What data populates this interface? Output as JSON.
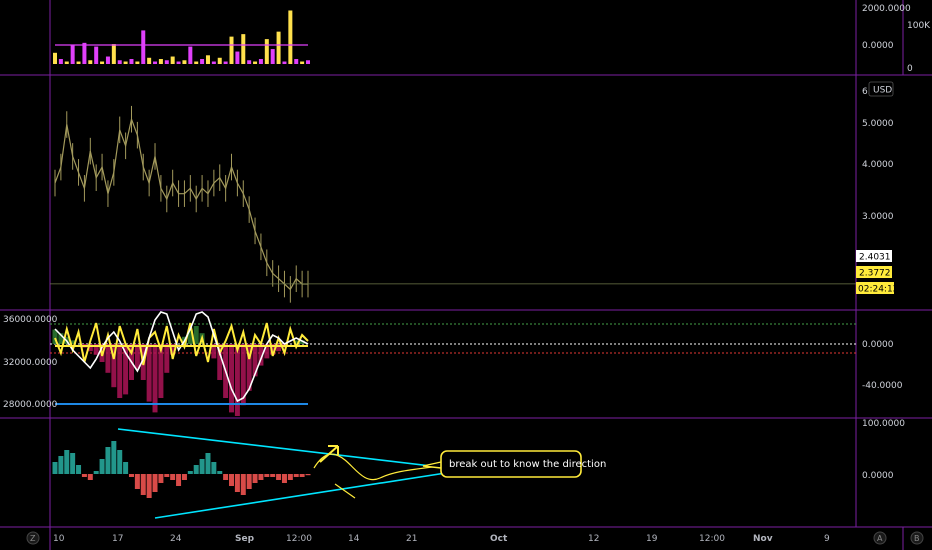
{
  "chart_data": [
    {
      "type": "bar",
      "pane": "volume",
      "y_ticks": [
        "2000.0000",
        "0.0000"
      ],
      "right_scale_labels": [
        "100K",
        "0"
      ],
      "series": [
        {
          "values": [
            0.9,
            0.4,
            0.2,
            1.5,
            0.2,
            1.7,
            0.3,
            1.4,
            0.2,
            0.6,
            1.6,
            0.3,
            0.2,
            0.4,
            0.2,
            2.7,
            0.5,
            0.2,
            0.4,
            0.3,
            0.6,
            0.2,
            0.3,
            1.4,
            0.2,
            0.4,
            0.7,
            0.2,
            0.5,
            0.2,
            2.2,
            1.0,
            2.4,
            0.3,
            0.2,
            0.4,
            2.0,
            1.2,
            2.6,
            0.2,
            4.3,
            0.4,
            0.2,
            0.3
          ]
        }
      ],
      "colors": [
        "#ffe14d",
        "#e040fb"
      ]
    },
    {
      "type": "line",
      "pane": "price",
      "y_ticks": [
        "6.",
        "5.0000",
        "4.0000",
        "3.0000"
      ],
      "currency": "USD",
      "price_labels": [
        "2.4031",
        "2.3772",
        "02:24:12"
      ],
      "ylim": [
        2.1,
        6.2
      ],
      "series": [
        {
          "values": [
            4.3,
            4.6,
            5.4,
            4.8,
            4.5,
            4.2,
            4.9,
            4.4,
            4.6,
            4.1,
            4.5,
            5.3,
            5.0,
            5.5,
            5.2,
            4.6,
            4.3,
            4.8,
            4.2,
            4.0,
            4.3,
            4.1,
            4.1,
            4.2,
            4.0,
            4.2,
            4.1,
            4.3,
            4.4,
            4.2,
            4.6,
            4.3,
            4.1,
            3.8,
            3.4,
            3.1,
            2.8,
            2.6,
            2.5,
            2.4,
            2.3,
            2.5,
            2.4,
            2.4
          ]
        }
      ],
      "colors": [
        "#a39a5c"
      ]
    },
    {
      "type": "line",
      "pane": "oscillator",
      "y_ticks_left": [
        "36000.0000",
        "32000.0000",
        "28000.0000"
      ],
      "y_ticks_right": [
        "0.0000",
        "-40.0000"
      ],
      "series": [
        {
          "values": [
            4,
            -6,
            10,
            -4,
            8,
            -12,
            2,
            14,
            -8,
            6,
            -10,
            12,
            0,
            -6,
            10,
            -14,
            4,
            8,
            -4,
            12,
            -10,
            6,
            -2,
            14,
            -8,
            4,
            -12,
            10,
            -6,
            2,
            12,
            -4,
            8,
            -10,
            6,
            0,
            14,
            -8,
            4,
            -6,
            10,
            -2,
            6,
            2
          ]
        },
        {
          "values": [
            10,
            6,
            2,
            -4,
            -8,
            -12,
            -16,
            -10,
            -2,
            4,
            8,
            2,
            -6,
            -12,
            -18,
            -10,
            4,
            16,
            26,
            20,
            8,
            -4,
            2,
            10,
            20,
            30,
            18,
            6,
            -6,
            -18,
            -30,
            -38,
            -36,
            -30,
            -20,
            -10,
            0,
            6,
            4,
            0,
            2,
            4,
            2,
            0
          ]
        },
        {
          "values": [
            8,
            6,
            4,
            2,
            0,
            -2,
            -4,
            -6,
            -10,
            -16,
            -24,
            -30,
            -28,
            -20,
            -14,
            -20,
            -32,
            -38,
            -30,
            -16,
            -6,
            0,
            4,
            8,
            10,
            6,
            0,
            -8,
            -20,
            -30,
            -38,
            -40,
            -34,
            -26,
            -18,
            -12,
            -8,
            -6,
            -4,
            -2,
            0,
            2,
            2,
            0
          ]
        }
      ],
      "colors": [
        "#ffeb3b",
        "#ffffff",
        "#ad1457",
        "#1e88e5"
      ]
    },
    {
      "type": "bar",
      "pane": "momentum",
      "y_ticks": [
        "100.0000",
        "0.0000"
      ],
      "series": [
        {
          "values": [
            20,
            30,
            40,
            35,
            15,
            -5,
            -10,
            5,
            25,
            45,
            55,
            40,
            20,
            -5,
            -25,
            -35,
            -40,
            -30,
            -15,
            -5,
            -10,
            -20,
            -10,
            5,
            15,
            25,
            35,
            20,
            5,
            -10,
            -20,
            -30,
            -35,
            -25,
            -15,
            -10,
            -5,
            -5,
            -10,
            -15,
            -10,
            -5,
            -5,
            -2
          ]
        }
      ],
      "colors": [
        "#26a69a",
        "#ef5350",
        "#00e5ff",
        "#ffeb3b"
      ]
    }
  ],
  "annotation": {
    "text": "break out to know the direction"
  },
  "time_axis": {
    "labels": [
      "10",
      "17",
      "24",
      "Sep",
      "12:00",
      "14",
      "21",
      "Oct",
      "12",
      "19",
      "12:00",
      "Nov",
      "9"
    ]
  },
  "footer_icons": [
    "Z",
    "A",
    "B"
  ]
}
